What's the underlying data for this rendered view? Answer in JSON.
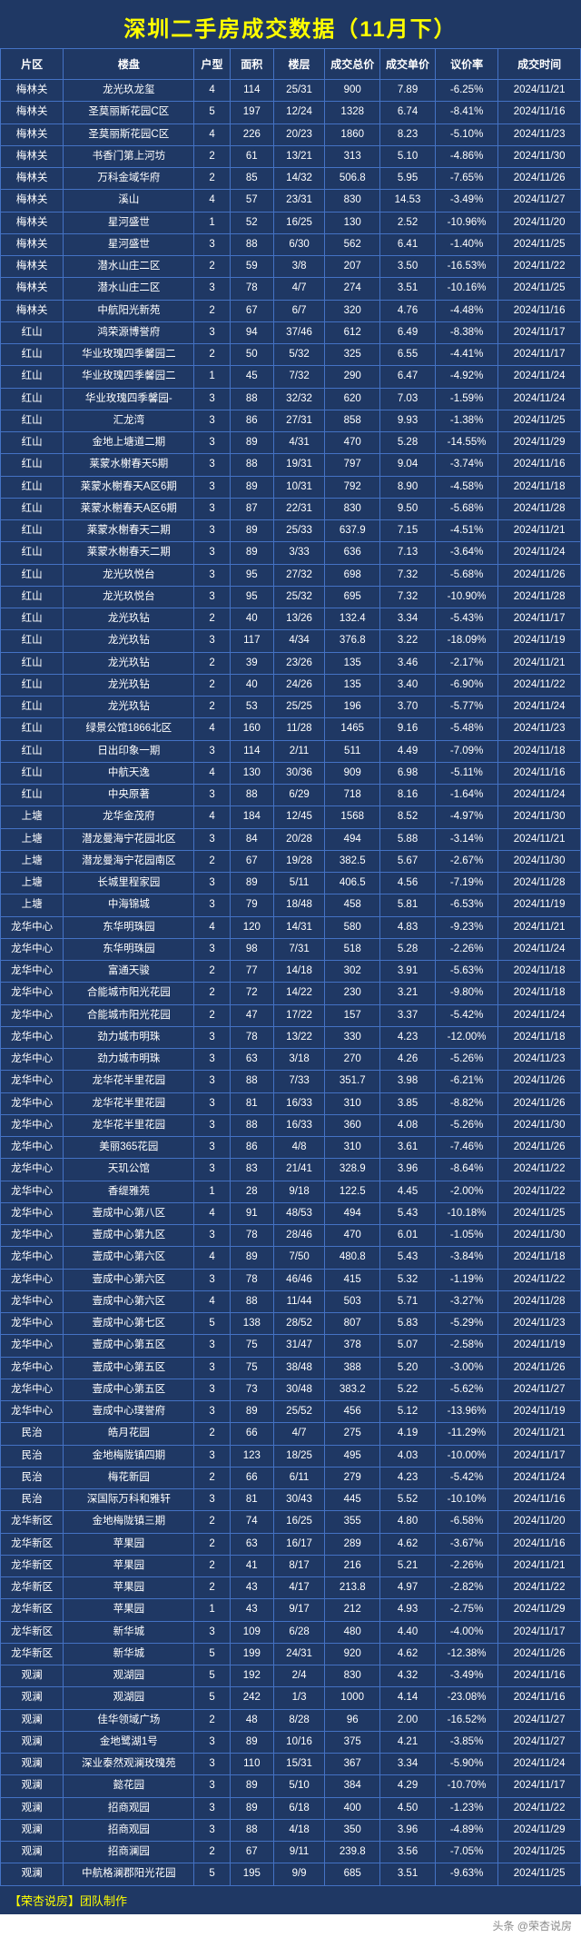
{
  "title": "深圳二手房成交数据（11月下）",
  "columns": [
    "片区",
    "楼盘",
    "户型",
    "面积",
    "楼层",
    "成交总价",
    "成交单价",
    "议价率",
    "成交时间"
  ],
  "footer_left": "【荣杏说房】团队制作",
  "footer_right": "头条 @荣杏说房",
  "rows": [
    [
      "梅林关",
      "龙光玖龙玺",
      "4",
      "114",
      "25/31",
      "900",
      "7.89",
      "-6.25%",
      "2024/11/21"
    ],
    [
      "梅林关",
      "圣莫丽斯花园C区",
      "5",
      "197",
      "12/24",
      "1328",
      "6.74",
      "-8.41%",
      "2024/11/16"
    ],
    [
      "梅林关",
      "圣莫丽斯花园C区",
      "4",
      "226",
      "20/23",
      "1860",
      "8.23",
      "-5.10%",
      "2024/11/23"
    ],
    [
      "梅林关",
      "书香门第上河坊",
      "2",
      "61",
      "13/21",
      "313",
      "5.10",
      "-4.86%",
      "2024/11/30"
    ],
    [
      "梅林关",
      "万科金域华府",
      "2",
      "85",
      "14/32",
      "506.8",
      "5.95",
      "-7.65%",
      "2024/11/26"
    ],
    [
      "梅林关",
      "溪山",
      "4",
      "57",
      "23/31",
      "830",
      "14.53",
      "-3.49%",
      "2024/11/27"
    ],
    [
      "梅林关",
      "星河盛世",
      "1",
      "52",
      "16/25",
      "130",
      "2.52",
      "-10.96%",
      "2024/11/20"
    ],
    [
      "梅林关",
      "星河盛世",
      "3",
      "88",
      "6/30",
      "562",
      "6.41",
      "-1.40%",
      "2024/11/25"
    ],
    [
      "梅林关",
      "潜水山庄二区",
      "2",
      "59",
      "3/8",
      "207",
      "3.50",
      "-16.53%",
      "2024/11/22"
    ],
    [
      "梅林关",
      "潜水山庄二区",
      "3",
      "78",
      "4/7",
      "274",
      "3.51",
      "-10.16%",
      "2024/11/25"
    ],
    [
      "梅林关",
      "中航阳光新苑",
      "2",
      "67",
      "6/7",
      "320",
      "4.76",
      "-4.48%",
      "2024/11/16"
    ],
    [
      "红山",
      "鸿荣源博誉府",
      "3",
      "94",
      "37/46",
      "612",
      "6.49",
      "-8.38%",
      "2024/11/17"
    ],
    [
      "红山",
      "华业玫瑰四季馨园二",
      "2",
      "50",
      "5/32",
      "325",
      "6.55",
      "-4.41%",
      "2024/11/17"
    ],
    [
      "红山",
      "华业玫瑰四季馨园二",
      "1",
      "45",
      "7/32",
      "290",
      "6.47",
      "-4.92%",
      "2024/11/24"
    ],
    [
      "红山",
      "华业玫瑰四季馨园-",
      "3",
      "88",
      "32/32",
      "620",
      "7.03",
      "-1.59%",
      "2024/11/24"
    ],
    [
      "红山",
      "汇龙湾",
      "3",
      "86",
      "27/31",
      "858",
      "9.93",
      "-1.38%",
      "2024/11/25"
    ],
    [
      "红山",
      "金地上塘道二期",
      "3",
      "89",
      "4/31",
      "470",
      "5.28",
      "-14.55%",
      "2024/11/29"
    ],
    [
      "红山",
      "莱蒙水榭春天5期",
      "3",
      "88",
      "19/31",
      "797",
      "9.04",
      "-3.74%",
      "2024/11/16"
    ],
    [
      "红山",
      "莱蒙水榭春天A区6期",
      "3",
      "89",
      "10/31",
      "792",
      "8.90",
      "-4.58%",
      "2024/11/18"
    ],
    [
      "红山",
      "莱蒙水榭春天A区6期",
      "3",
      "87",
      "22/31",
      "830",
      "9.50",
      "-5.68%",
      "2024/11/28"
    ],
    [
      "红山",
      "莱蒙水榭春天二期",
      "3",
      "89",
      "25/33",
      "637.9",
      "7.15",
      "-4.51%",
      "2024/11/21"
    ],
    [
      "红山",
      "莱蒙水榭春天二期",
      "3",
      "89",
      "3/33",
      "636",
      "7.13",
      "-3.64%",
      "2024/11/24"
    ],
    [
      "红山",
      "龙光玖悦台",
      "3",
      "95",
      "27/32",
      "698",
      "7.32",
      "-5.68%",
      "2024/11/26"
    ],
    [
      "红山",
      "龙光玖悦台",
      "3",
      "95",
      "25/32",
      "695",
      "7.32",
      "-10.90%",
      "2024/11/28"
    ],
    [
      "红山",
      "龙光玖钻",
      "2",
      "40",
      "13/26",
      "132.4",
      "3.34",
      "-5.43%",
      "2024/11/17"
    ],
    [
      "红山",
      "龙光玖钻",
      "3",
      "117",
      "4/34",
      "376.8",
      "3.22",
      "-18.09%",
      "2024/11/19"
    ],
    [
      "红山",
      "龙光玖钻",
      "2",
      "39",
      "23/26",
      "135",
      "3.46",
      "-2.17%",
      "2024/11/21"
    ],
    [
      "红山",
      "龙光玖钻",
      "2",
      "40",
      "24/26",
      "135",
      "3.40",
      "-6.90%",
      "2024/11/22"
    ],
    [
      "红山",
      "龙光玖钻",
      "2",
      "53",
      "25/25",
      "196",
      "3.70",
      "-5.77%",
      "2024/11/24"
    ],
    [
      "红山",
      "绿景公馆1866北区",
      "4",
      "160",
      "11/28",
      "1465",
      "9.16",
      "-5.48%",
      "2024/11/23"
    ],
    [
      "红山",
      "日出印象一期",
      "3",
      "114",
      "2/11",
      "511",
      "4.49",
      "-7.09%",
      "2024/11/18"
    ],
    [
      "红山",
      "中航天逸",
      "4",
      "130",
      "30/36",
      "909",
      "6.98",
      "-5.11%",
      "2024/11/16"
    ],
    [
      "红山",
      "中央原著",
      "3",
      "88",
      "6/29",
      "718",
      "8.16",
      "-1.64%",
      "2024/11/24"
    ],
    [
      "上塘",
      "龙华金茂府",
      "4",
      "184",
      "12/45",
      "1568",
      "8.52",
      "-4.97%",
      "2024/11/30"
    ],
    [
      "上塘",
      "潜龙曼海宁花园北区",
      "3",
      "84",
      "20/28",
      "494",
      "5.88",
      "-3.14%",
      "2024/11/21"
    ],
    [
      "上塘",
      "潜龙曼海宁花园南区",
      "2",
      "67",
      "19/28",
      "382.5",
      "5.67",
      "-2.67%",
      "2024/11/30"
    ],
    [
      "上塘",
      "长城里程家园",
      "3",
      "89",
      "5/11",
      "406.5",
      "4.56",
      "-7.19%",
      "2024/11/28"
    ],
    [
      "上塘",
      "中海锦城",
      "3",
      "79",
      "18/48",
      "458",
      "5.81",
      "-6.53%",
      "2024/11/19"
    ],
    [
      "龙华中心",
      "东华明珠园",
      "4",
      "120",
      "14/31",
      "580",
      "4.83",
      "-9.23%",
      "2024/11/21"
    ],
    [
      "龙华中心",
      "东华明珠园",
      "3",
      "98",
      "7/31",
      "518",
      "5.28",
      "-2.26%",
      "2024/11/24"
    ],
    [
      "龙华中心",
      "富通天骏",
      "2",
      "77",
      "14/18",
      "302",
      "3.91",
      "-5.63%",
      "2024/11/18"
    ],
    [
      "龙华中心",
      "合能城市阳光花园",
      "2",
      "72",
      "14/22",
      "230",
      "3.21",
      "-9.80%",
      "2024/11/18"
    ],
    [
      "龙华中心",
      "合能城市阳光花园",
      "2",
      "47",
      "17/22",
      "157",
      "3.37",
      "-5.42%",
      "2024/11/24"
    ],
    [
      "龙华中心",
      "劲力城市明珠",
      "3",
      "78",
      "13/22",
      "330",
      "4.23",
      "-12.00%",
      "2024/11/18"
    ],
    [
      "龙华中心",
      "劲力城市明珠",
      "3",
      "63",
      "3/18",
      "270",
      "4.26",
      "-5.26%",
      "2024/11/23"
    ],
    [
      "龙华中心",
      "龙华花半里花园",
      "3",
      "88",
      "7/33",
      "351.7",
      "3.98",
      "-6.21%",
      "2024/11/26"
    ],
    [
      "龙华中心",
      "龙华花半里花园",
      "3",
      "81",
      "16/33",
      "310",
      "3.85",
      "-8.82%",
      "2024/11/26"
    ],
    [
      "龙华中心",
      "龙华花半里花园",
      "3",
      "88",
      "16/33",
      "360",
      "4.08",
      "-5.26%",
      "2024/11/30"
    ],
    [
      "龙华中心",
      "美丽365花园",
      "3",
      "86",
      "4/8",
      "310",
      "3.61",
      "-7.46%",
      "2024/11/26"
    ],
    [
      "龙华中心",
      "天玑公馆",
      "3",
      "83",
      "21/41",
      "328.9",
      "3.96",
      "-8.64%",
      "2024/11/22"
    ],
    [
      "龙华中心",
      "香缇雅苑",
      "1",
      "28",
      "9/18",
      "122.5",
      "4.45",
      "-2.00%",
      "2024/11/22"
    ],
    [
      "龙华中心",
      "壹成中心第八区",
      "4",
      "91",
      "48/53",
      "494",
      "5.43",
      "-10.18%",
      "2024/11/25"
    ],
    [
      "龙华中心",
      "壹成中心第九区",
      "3",
      "78",
      "28/46",
      "470",
      "6.01",
      "-1.05%",
      "2024/11/30"
    ],
    [
      "龙华中心",
      "壹成中心第六区",
      "4",
      "89",
      "7/50",
      "480.8",
      "5.43",
      "-3.84%",
      "2024/11/18"
    ],
    [
      "龙华中心",
      "壹成中心第六区",
      "3",
      "78",
      "46/46",
      "415",
      "5.32",
      "-1.19%",
      "2024/11/22"
    ],
    [
      "龙华中心",
      "壹成中心第六区",
      "4",
      "88",
      "11/44",
      "503",
      "5.71",
      "-3.27%",
      "2024/11/28"
    ],
    [
      "龙华中心",
      "壹成中心第七区",
      "5",
      "138",
      "28/52",
      "807",
      "5.83",
      "-5.29%",
      "2024/11/23"
    ],
    [
      "龙华中心",
      "壹成中心第五区",
      "3",
      "75",
      "31/47",
      "378",
      "5.07",
      "-2.58%",
      "2024/11/19"
    ],
    [
      "龙华中心",
      "壹成中心第五区",
      "3",
      "75",
      "38/48",
      "388",
      "5.20",
      "-3.00%",
      "2024/11/26"
    ],
    [
      "龙华中心",
      "壹成中心第五区",
      "3",
      "73",
      "30/48",
      "383.2",
      "5.22",
      "-5.62%",
      "2024/11/27"
    ],
    [
      "龙华中心",
      "壹成中心璞誉府",
      "3",
      "89",
      "25/52",
      "456",
      "5.12",
      "-13.96%",
      "2024/11/19"
    ],
    [
      "民治",
      "皓月花园",
      "2",
      "66",
      "4/7",
      "275",
      "4.19",
      "-11.29%",
      "2024/11/21"
    ],
    [
      "民治",
      "金地梅陇镇四期",
      "3",
      "123",
      "18/25",
      "495",
      "4.03",
      "-10.00%",
      "2024/11/17"
    ],
    [
      "民治",
      "梅花新园",
      "2",
      "66",
      "6/11",
      "279",
      "4.23",
      "-5.42%",
      "2024/11/24"
    ],
    [
      "民治",
      "深国际万科和雅轩",
      "3",
      "81",
      "30/43",
      "445",
      "5.52",
      "-10.10%",
      "2024/11/16"
    ],
    [
      "龙华新区",
      "金地梅陇镇三期",
      "2",
      "74",
      "16/25",
      "355",
      "4.80",
      "-6.58%",
      "2024/11/20"
    ],
    [
      "龙华新区",
      "苹果园",
      "2",
      "63",
      "16/17",
      "289",
      "4.62",
      "-3.67%",
      "2024/11/16"
    ],
    [
      "龙华新区",
      "苹果园",
      "2",
      "41",
      "8/17",
      "216",
      "5.21",
      "-2.26%",
      "2024/11/21"
    ],
    [
      "龙华新区",
      "苹果园",
      "2",
      "43",
      "4/17",
      "213.8",
      "4.97",
      "-2.82%",
      "2024/11/22"
    ],
    [
      "龙华新区",
      "苹果园",
      "1",
      "43",
      "9/17",
      "212",
      "4.93",
      "-2.75%",
      "2024/11/29"
    ],
    [
      "龙华新区",
      "新华城",
      "3",
      "109",
      "6/28",
      "480",
      "4.40",
      "-4.00%",
      "2024/11/17"
    ],
    [
      "龙华新区",
      "新华城",
      "5",
      "199",
      "24/31",
      "920",
      "4.62",
      "-12.38%",
      "2024/11/26"
    ],
    [
      "观澜",
      "观湖园",
      "5",
      "192",
      "2/4",
      "830",
      "4.32",
      "-3.49%",
      "2024/11/16"
    ],
    [
      "观澜",
      "观湖园",
      "5",
      "242",
      "1/3",
      "1000",
      "4.14",
      "-23.08%",
      "2024/11/16"
    ],
    [
      "观澜",
      "佳华领域广场",
      "2",
      "48",
      "8/28",
      "96",
      "2.00",
      "-16.52%",
      "2024/11/27"
    ],
    [
      "观澜",
      "金地鹭湖1号",
      "3",
      "89",
      "10/16",
      "375",
      "4.21",
      "-3.85%",
      "2024/11/27"
    ],
    [
      "观澜",
      "深业泰然观澜玫瑰苑",
      "3",
      "110",
      "15/31",
      "367",
      "3.34",
      "-5.90%",
      "2024/11/24"
    ],
    [
      "观澜",
      "懿花园",
      "3",
      "89",
      "5/10",
      "384",
      "4.29",
      "-10.70%",
      "2024/11/17"
    ],
    [
      "观澜",
      "招商观园",
      "3",
      "89",
      "6/18",
      "400",
      "4.50",
      "-1.23%",
      "2024/11/22"
    ],
    [
      "观澜",
      "招商观园",
      "3",
      "88",
      "4/18",
      "350",
      "3.96",
      "-4.89%",
      "2024/11/29"
    ],
    [
      "观澜",
      "招商澜园",
      "2",
      "67",
      "9/11",
      "239.8",
      "3.56",
      "-7.05%",
      "2024/11/25"
    ],
    [
      "观澜",
      "中航格澜郡阳光花园",
      "5",
      "195",
      "9/9",
      "685",
      "3.51",
      "-9.63%",
      "2024/11/25"
    ]
  ]
}
